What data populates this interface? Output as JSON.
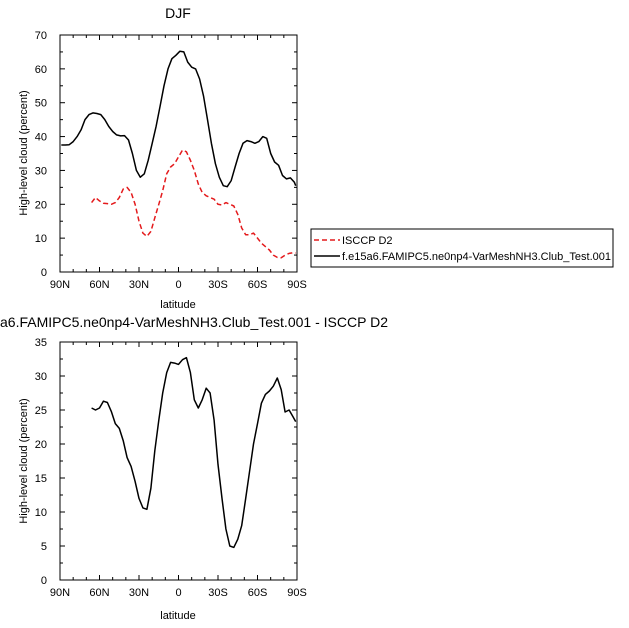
{
  "chart_data": [
    {
      "type": "line",
      "title": "DJF",
      "xlabel": "latitude",
      "ylabel": "High-level cloud (percent)",
      "xlim": [
        90,
        -90
      ],
      "ylim": [
        0,
        70
      ],
      "x_ticks": [
        90,
        60,
        30,
        0,
        -30,
        -60,
        -90
      ],
      "x_tick_labels": [
        "90N",
        "60N",
        "30N",
        "0",
        "30S",
        "60S",
        "90S"
      ],
      "y_ticks": [
        0,
        10,
        20,
        30,
        40,
        50,
        60,
        70
      ],
      "y_tick_labels": [
        "0",
        "10",
        "20",
        "30",
        "40",
        "50",
        "60",
        "70"
      ],
      "legend_placement": "right, outside",
      "series": [
        {
          "name": "ISCCP D2",
          "color": "#e41a1c",
          "style": "dashed",
          "x": [
            66,
            63,
            60,
            57,
            54,
            51,
            48,
            45,
            42,
            39,
            36,
            33,
            30,
            27,
            24,
            21,
            18,
            15,
            12,
            9,
            6,
            3,
            0,
            -3,
            -6,
            -9,
            -12,
            -15,
            -18,
            -21,
            -24,
            -27,
            -30,
            -33,
            -36,
            -39,
            -42,
            -45,
            -48,
            -51,
            -54,
            -57,
            -60,
            -63,
            -66,
            -69,
            -72,
            -75,
            -78,
            -81,
            -84,
            -87,
            -89
          ],
          "y": [
            20.5,
            22,
            21,
            20.3,
            20.2,
            20,
            20.5,
            22,
            24.5,
            25,
            23.5,
            20,
            15,
            11.5,
            10.5,
            12,
            16,
            20,
            24,
            29,
            31,
            32,
            34,
            36,
            35.5,
            33,
            30,
            26,
            23.5,
            22.5,
            22,
            21.5,
            20,
            19.8,
            20.5,
            20,
            19.5,
            17,
            13,
            11,
            11,
            11.5,
            10,
            8.5,
            7.5,
            6.5,
            5,
            4.3,
            4.2,
            5,
            5.5,
            5.7,
            5.6
          ]
        },
        {
          "name": "f.e15a6.FAMIPC5.ne0np4-VarMeshNH3.Club_Test.001",
          "color": "#000000",
          "style": "solid",
          "x": [
            89,
            86,
            83,
            80,
            77,
            74,
            71,
            68,
            65,
            62,
            59,
            56,
            53,
            50,
            47,
            44,
            41,
            38,
            35,
            32,
            29,
            26,
            23,
            20,
            17,
            14,
            11,
            8,
            5,
            2,
            -1,
            -4,
            -7,
            -10,
            -13,
            -16,
            -19,
            -22,
            -25,
            -28,
            -31,
            -34,
            -37,
            -40,
            -43,
            -46,
            -49,
            -52,
            -55,
            -58,
            -61,
            -64,
            -67,
            -70,
            -73,
            -76,
            -79,
            -82,
            -85,
            -88,
            -89
          ],
          "y": [
            37.5,
            37.5,
            37.6,
            38.5,
            40,
            42,
            45,
            46.5,
            47,
            46.8,
            46.5,
            45,
            43,
            41.5,
            40.5,
            40.2,
            40.3,
            39,
            35,
            30,
            28,
            29,
            33,
            38,
            43,
            49,
            55,
            60,
            63,
            64,
            65.2,
            65,
            62,
            60.5,
            60,
            57,
            52,
            45,
            38,
            32,
            28,
            25.5,
            25.2,
            27,
            31,
            35,
            38,
            38.8,
            38.5,
            38,
            38.5,
            40,
            39.5,
            35,
            32.5,
            31.5,
            28.5,
            27.5,
            27.8,
            26.5,
            25.5
          ]
        }
      ]
    },
    {
      "type": "line",
      "title": "a6.FAMIPC5.ne0np4-VarMeshNH3.Club_Test.001 - ISCCP D2",
      "xlabel": "latitude",
      "ylabel": "High-level cloud (percent)",
      "xlim": [
        90,
        -90
      ],
      "ylim": [
        0,
        35
      ],
      "x_ticks": [
        90,
        60,
        30,
        0,
        -30,
        -60,
        -90
      ],
      "x_tick_labels": [
        "90N",
        "60N",
        "30N",
        "0",
        "30S",
        "60S",
        "90S"
      ],
      "y_ticks": [
        0,
        5,
        10,
        15,
        20,
        25,
        30,
        35
      ],
      "y_tick_labels": [
        "0",
        "5",
        "10",
        "15",
        "20",
        "25",
        "30",
        "35"
      ],
      "series": [
        {
          "color": "#000000",
          "style": "solid",
          "x": [
            66,
            63,
            60,
            57,
            54,
            51,
            48,
            45,
            42,
            39,
            36,
            33,
            30,
            27,
            24,
            21,
            18,
            15,
            12,
            9,
            6,
            3,
            0,
            -3,
            -6,
            -9,
            -12,
            -15,
            -18,
            -21,
            -24,
            -27,
            -30,
            -33,
            -36,
            -39,
            -42,
            -45,
            -48,
            -51,
            -54,
            -57,
            -60,
            -63,
            -66,
            -69,
            -72,
            -75,
            -78,
            -81,
            -84,
            -87,
            -89
          ],
          "y": [
            25.3,
            25,
            25.3,
            26.3,
            26.1,
            24.8,
            23,
            22.3,
            20.5,
            18,
            16.7,
            14.5,
            12,
            10.6,
            10.4,
            13.5,
            19,
            23.5,
            27.5,
            30.5,
            32,
            31.9,
            31.7,
            32.4,
            32.7,
            30.5,
            26.5,
            25.3,
            26.5,
            28.2,
            27.5,
            23.5,
            17,
            12,
            7.5,
            5,
            4.8,
            6,
            8,
            12,
            16,
            20,
            23,
            26,
            27.3,
            27.8,
            28.5,
            29.7,
            28,
            24.7,
            25,
            24,
            23.3
          ]
        }
      ]
    }
  ]
}
